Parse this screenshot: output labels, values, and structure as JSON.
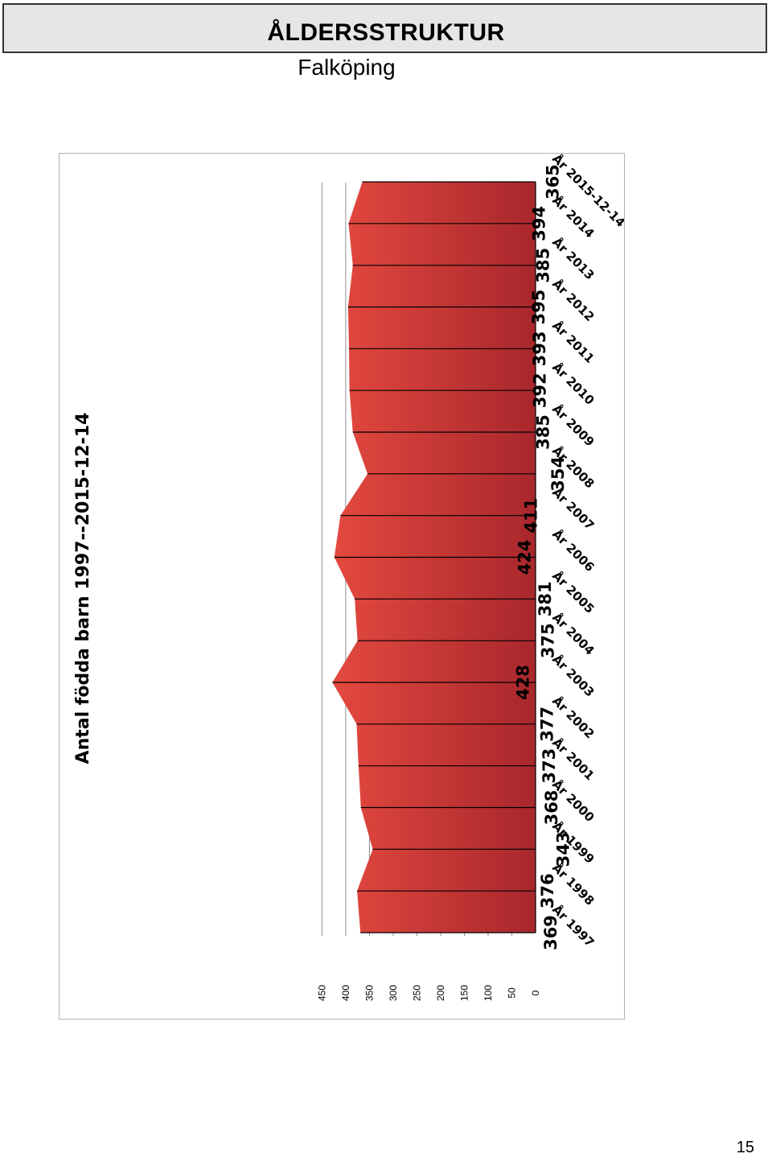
{
  "header": {
    "title": "ÅLDERSSTRUKTUR",
    "subtitle": "Falköping"
  },
  "page_number": "15",
  "colors": {
    "fill_light": "#e4493f",
    "fill_dark": "#a8272c",
    "gridline": "#000000",
    "frame": "#b3b3b3"
  },
  "chart_data": {
    "type": "area",
    "orientation": "rotated-90",
    "title": "Antal födda barn 1997--2015-12-14",
    "xlabel": "",
    "ylabel": "",
    "categories": [
      "År 1997",
      "År 1998",
      "År 1999",
      "År 2000",
      "År 2001",
      "År 2002",
      "År 2003",
      "År 2004",
      "År 2005",
      "År 2006",
      "År 2007",
      "År 2008",
      "År 2009",
      "År 2010",
      "År 2011",
      "År 2012",
      "År 2013",
      "År 2014",
      "År 2015-12-14"
    ],
    "values": [
      369,
      376,
      343,
      368,
      373,
      377,
      428,
      375,
      381,
      424,
      411,
      354,
      385,
      392,
      393,
      395,
      385,
      394,
      365
    ],
    "data_labels": [
      "369",
      "376",
      "343",
      "368",
      "373",
      "377",
      "428",
      "375",
      "381",
      "424",
      "411",
      "354",
      "385",
      "392",
      "393",
      "395",
      "385",
      "394",
      "365"
    ],
    "ylim": [
      0,
      450
    ],
    "y_ticks": [
      "0",
      "50",
      "100",
      "150",
      "200",
      "250",
      "300",
      "350",
      "400",
      "450"
    ],
    "grid": "major",
    "legend": "none"
  }
}
